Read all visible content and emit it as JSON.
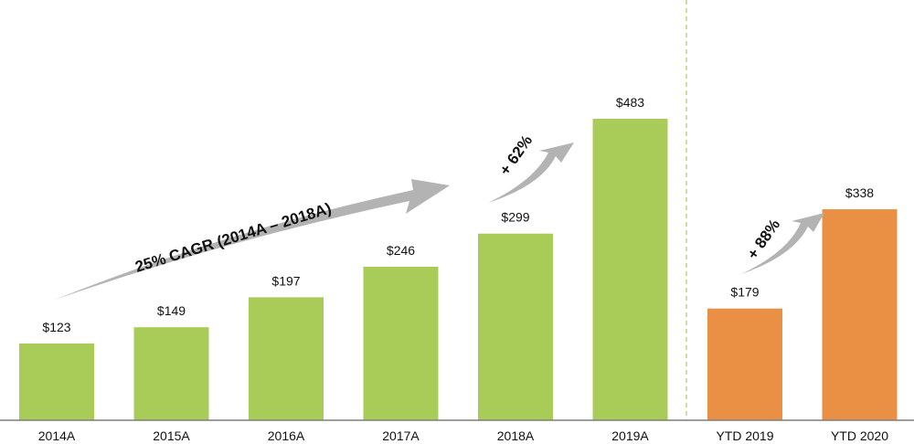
{
  "chart_data": {
    "type": "bar",
    "categories": [
      "2014A",
      "2015A",
      "2016A",
      "2017A",
      "2018A",
      "2019A",
      "YTD 2019",
      "YTD 2020"
    ],
    "values": [
      123,
      149,
      197,
      246,
      299,
      483,
      179,
      338
    ],
    "value_labels": [
      "$123",
      "$149",
      "$197",
      "$246",
      "$299",
      "$483",
      "$179",
      "$338"
    ],
    "ylim": [
      0,
      483
    ],
    "grid": false,
    "annotations": {
      "cagr": "25% CAGR (2014A – 2018A)",
      "growth_2019": "+ 62%",
      "growth_ytd": "+ 88%"
    },
    "colors": {
      "annual": "#a8cc57",
      "ytd": "#e99045",
      "divider": "#a8cc57",
      "arrow": "#b3b3b3",
      "axis": "#7f7f7f"
    }
  }
}
